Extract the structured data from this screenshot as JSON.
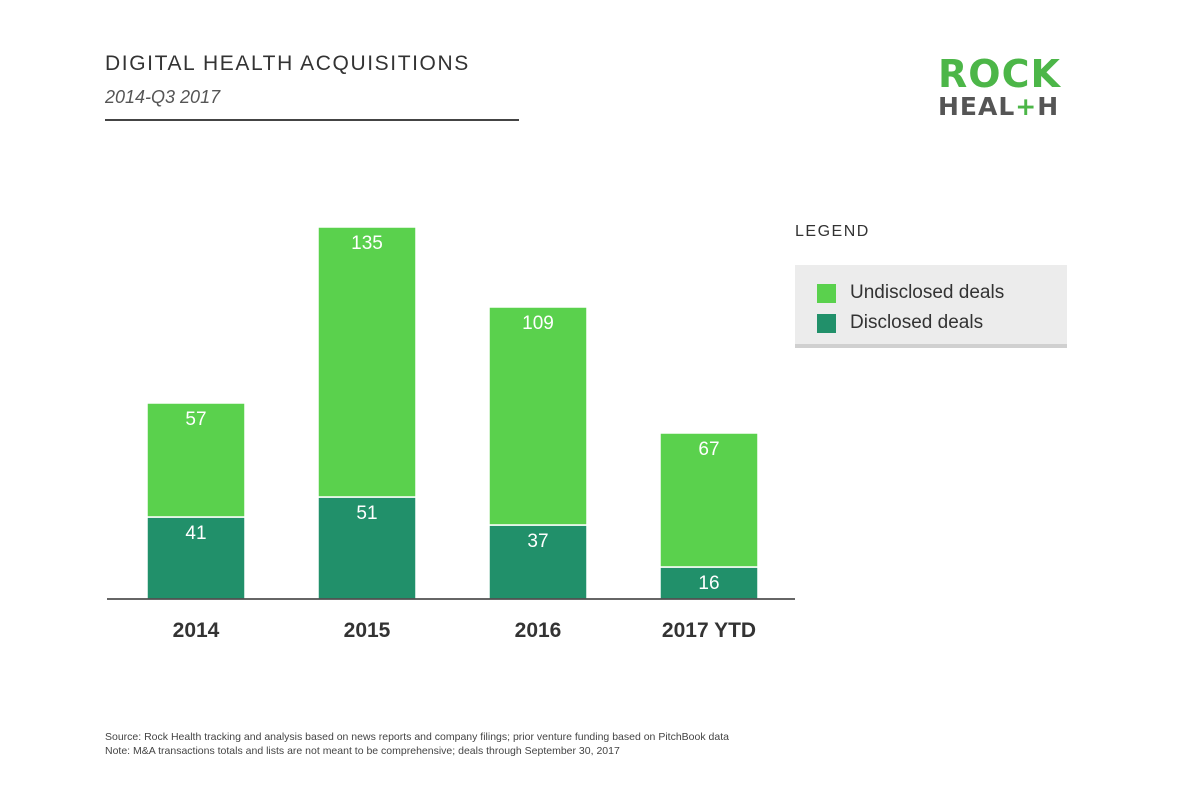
{
  "header": {
    "title": "DIGITAL HEALTH ACQUISITIONS",
    "subtitle": "2014-Q3 2017"
  },
  "logo": {
    "line1": "ROCK",
    "line2_part1": "HEAL",
    "line2_plus": "+",
    "line2_part2": "H"
  },
  "legend": {
    "title": "LEGEND",
    "items": [
      {
        "label": "Undisclosed deals",
        "color": "#5ad14d"
      },
      {
        "label": "Disclosed deals",
        "color": "#21906a"
      }
    ]
  },
  "chart_data": {
    "type": "bar",
    "stacked": true,
    "categories": [
      "2014",
      "2015",
      "2016",
      "2017 YTD"
    ],
    "series": [
      {
        "name": "Disclosed deals",
        "values": [
          41,
          51,
          37,
          16
        ],
        "color": "#21906a"
      },
      {
        "name": "Undisclosed deals",
        "values": [
          57,
          135,
          109,
          67
        ],
        "color": "#5ad14d"
      }
    ],
    "title": "DIGITAL HEALTH ACQUISITIONS",
    "subtitle": "2014-Q3 2017",
    "xlabel": "",
    "ylabel": "",
    "ylim": [
      0,
      190
    ],
    "grid": false,
    "legend_position": "right"
  },
  "footnotes": [
    "Source: Rock Health tracking and analysis based on news reports and company filings; prior venture funding based on PitchBook data",
    "Note: M&A transactions totals and lists are not meant to be comprehensive; deals through September 30, 2017"
  ]
}
